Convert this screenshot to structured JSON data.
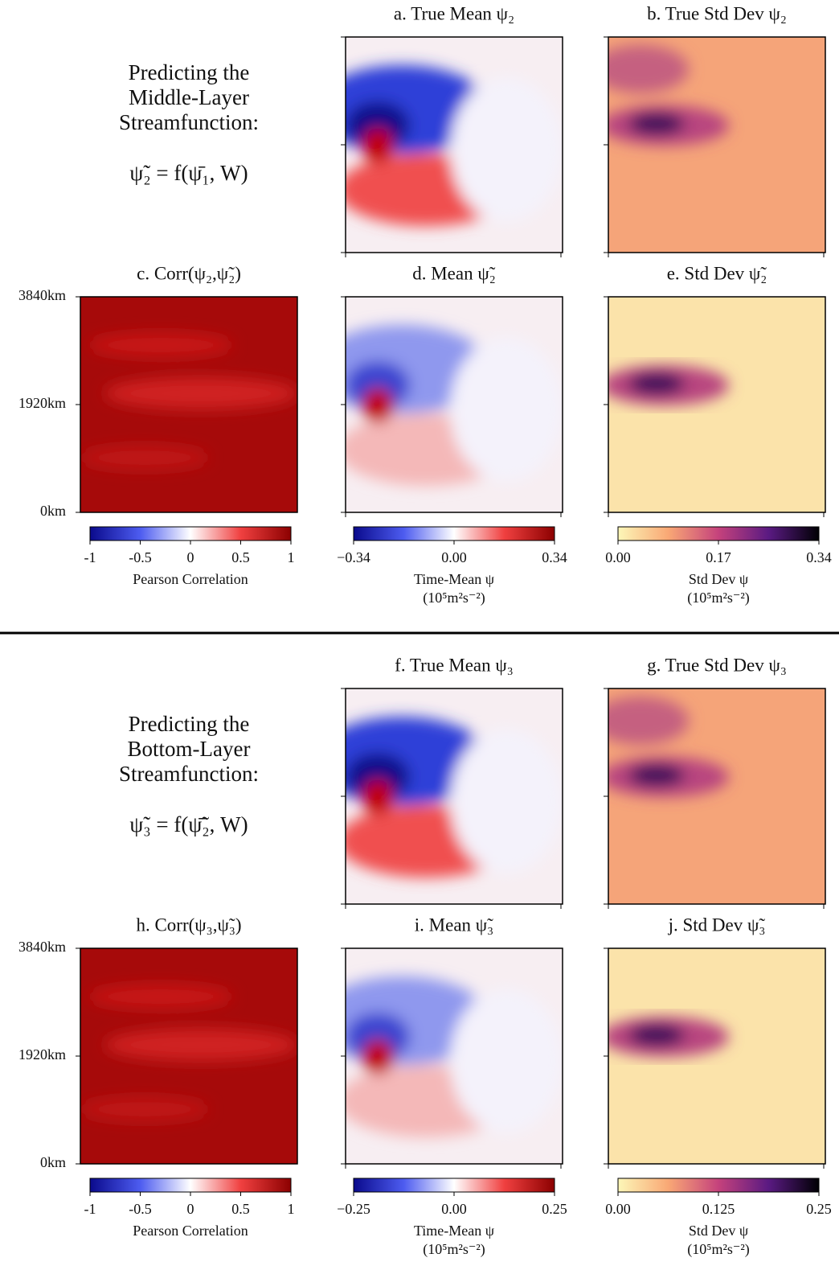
{
  "sections": [
    {
      "heading": [
        "Predicting the",
        "Middle-Layer",
        "Streamfunction:"
      ],
      "equation": "ψ̃₂ = f(ψ̄₁, W)",
      "panels": [
        {
          "title": "a. True Mean ψ₂"
        },
        {
          "title": "b. True Std Dev ψ₂"
        },
        {
          "title": "c. Corr(ψ₂,ψ̃₂)",
          "yticks": [
            {
              "value": 0,
              "label": "0km"
            },
            {
              "value": 1920,
              "label": "1920km"
            },
            {
              "value": 3840,
              "label": "3840km"
            }
          ],
          "ylim": [
            0,
            3840
          ]
        },
        {
          "title": "d. Mean ψ̃₂"
        },
        {
          "title": "e. Std Dev ψ̃₂"
        }
      ],
      "colorbars": [
        {
          "lim": [
            -1,
            1
          ],
          "ticks": [
            -1,
            -0.5,
            0,
            0.5,
            1
          ],
          "label": "Pearson Correlation"
        },
        {
          "lim": [
            -0.34,
            0.34
          ],
          "ticks": [
            {
              "value": -0.34,
              "label": "−0.34"
            },
            {
              "value": 0,
              "label": "0.00"
            },
            0.34
          ],
          "label": "Time-Mean ψ",
          "units": "(10⁵m²s⁻²)"
        },
        {
          "lim": [
            0,
            0.34
          ],
          "ticks": [
            {
              "value": 0,
              "label": "0.00"
            },
            0.17,
            0.34
          ],
          "label": "Std Dev ψ",
          "units": "(10⁵m²s⁻²)"
        }
      ]
    },
    {
      "heading": [
        "Predicting the",
        "Bottom-Layer",
        "Streamfunction:"
      ],
      "equation": "ψ̃₃ = f(ψ̄̃₂, W)",
      "panels": [
        {
          "title": "f. True Mean ψ₃"
        },
        {
          "title": "g. True Std Dev ψ₃"
        },
        {
          "title": "h. Corr(ψ₃,ψ̃₃)",
          "yticks": [
            {
              "value": 0,
              "label": "0km"
            },
            {
              "value": 1920,
              "label": "1920km"
            },
            {
              "value": 3840,
              "label": "3840km"
            }
          ],
          "ylim": [
            0,
            3840
          ]
        },
        {
          "title": "i. Mean ψ̃₃"
        },
        {
          "title": "j. Std Dev ψ̃₃"
        }
      ],
      "colorbars": [
        {
          "lim": [
            -1,
            1
          ],
          "ticks": [
            -1,
            -0.5,
            0,
            0.5,
            1
          ],
          "label": "Pearson Correlation"
        },
        {
          "lim": [
            -0.25,
            0.25
          ],
          "ticks": [
            {
              "value": -0.25,
              "label": "−0.25"
            },
            {
              "value": 0,
              "label": "0.00"
            },
            0.25
          ],
          "label": "Time-Mean ψ",
          "units": "(10⁵m²s⁻²)"
        },
        {
          "lim": [
            0,
            0.25
          ],
          "ticks": [
            {
              "value": 0,
              "label": "0.00"
            },
            0.125,
            0.25
          ],
          "label": "Std Dev ψ",
          "units": "(10⁵m²s⁻²)"
        }
      ]
    }
  ]
}
